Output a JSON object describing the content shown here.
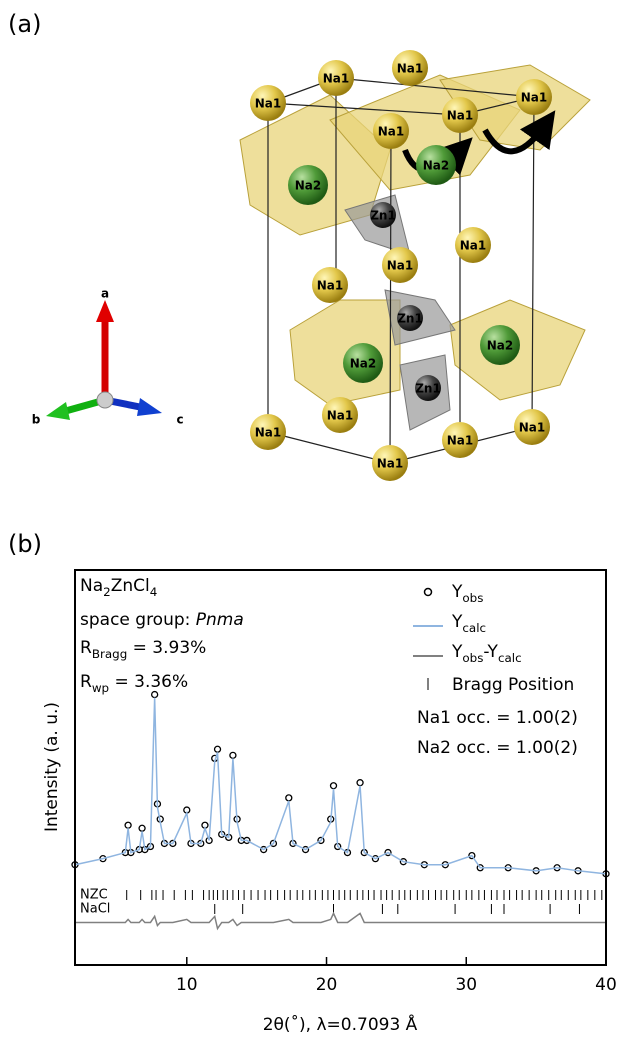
{
  "panel_labels": [
    "(a)",
    "(b)"
  ],
  "structure": {
    "atoms": [
      {
        "label": "Na1"
      },
      {
        "label": "Na1"
      },
      {
        "label": "Na1"
      },
      {
        "label": "Na1"
      },
      {
        "label": "Na1"
      },
      {
        "label": "Na1"
      },
      {
        "label": "Na1"
      },
      {
        "label": "Na1"
      },
      {
        "label": "Na1"
      },
      {
        "label": "Na1"
      },
      {
        "label": "Na1"
      },
      {
        "label": "Na1"
      },
      {
        "label": "Na1"
      },
      {
        "label": "Na1"
      },
      {
        "label": "Na2"
      },
      {
        "label": "Na2"
      },
      {
        "label": "Na2"
      },
      {
        "label": "Na2"
      },
      {
        "label": "Zn1"
      },
      {
        "label": "Zn1"
      },
      {
        "label": "Zn1"
      }
    ],
    "axes": [
      "a",
      "b",
      "c"
    ]
  },
  "chart_data": {
    "type": "scatter-line",
    "xlabel": "2θ(˚), λ=0.7093 Å",
    "ylabel": "Intensity (a. u.)",
    "xlim": [
      2,
      40
    ],
    "ylim": [
      -28,
      102
    ],
    "xticks": [
      10,
      20,
      30,
      40
    ],
    "annotations": [
      [
        {
          "text": "Na"
        },
        {
          "text": "2",
          "sub": true
        },
        {
          "text": "ZnCl"
        },
        {
          "text": "4",
          "sub": true
        }
      ],
      [
        {
          "text": "space group: "
        },
        {
          "text": "Pnma",
          "italic": true
        }
      ],
      [
        {
          "text": "R"
        },
        {
          "text": "Bragg",
          "sub": true
        },
        {
          "text": " = 3.93%"
        }
      ],
      [
        {
          "text": "R"
        },
        {
          "text": "wp",
          "sub": true
        },
        {
          "text": " = 3.36%"
        }
      ],
      [
        {
          "text": "Na1 occ. =  1.00(2)"
        }
      ],
      [
        {
          "text": "Na2 occ. =  1.00(2)"
        }
      ]
    ],
    "x": [
      2,
      4,
      5.6,
      5.8,
      6.0,
      6.6,
      6.8,
      7.0,
      7.4,
      7.7,
      7.9,
      8.1,
      8.4,
      9.0,
      10.0,
      10.3,
      11.0,
      11.3,
      11.6,
      12.0,
      12.2,
      12.5,
      13.0,
      13.3,
      13.6,
      13.9,
      14.3,
      15.5,
      16.2,
      17.3,
      17.6,
      18.5,
      19.6,
      20.3,
      20.5,
      20.8,
      21.5,
      22.4,
      22.7,
      23.5,
      24.4,
      25.5,
      27,
      28.5,
      30.4,
      31,
      33,
      35,
      36.5,
      38,
      40
    ],
    "series": [
      {
        "name": [
          {
            "text": "Y"
          },
          {
            "text": "obs",
            "sub": true
          }
        ],
        "color": "#000000",
        "style": "markers",
        "values": [
          5,
          7,
          9,
          18,
          9,
          10,
          17,
          10,
          11,
          61,
          25,
          20,
          12,
          12,
          23,
          12,
          12,
          18,
          13,
          40,
          43,
          15,
          14,
          41,
          20,
          13,
          13,
          10,
          12,
          27,
          12,
          10,
          13,
          20,
          31,
          11,
          9,
          32,
          9,
          7,
          9,
          6,
          5,
          5,
          8,
          4,
          4,
          3,
          4,
          3,
          2
        ]
      },
      {
        "name": [
          {
            "text": "Y"
          },
          {
            "text": "calc",
            "sub": true
          }
        ],
        "color": "#8fb5e0",
        "style": "line",
        "values": [
          5,
          7,
          9,
          17,
          9,
          10,
          16,
          10,
          11,
          60,
          24,
          19,
          12,
          12,
          22,
          12,
          12,
          17,
          13,
          39,
          42,
          15,
          14,
          40,
          19,
          13,
          13,
          10,
          12,
          26,
          12,
          10,
          13,
          19,
          30,
          11,
          9,
          31,
          9,
          7,
          9,
          6,
          5,
          5,
          8,
          4,
          4,
          3,
          4,
          3,
          2
        ]
      },
      {
        "name": [
          {
            "text": "Y"
          },
          {
            "text": "obs",
            "sub": true
          },
          {
            "text": "-Y"
          },
          {
            "text": "calc",
            "sub": true
          }
        ],
        "color": "#808080",
        "style": "line",
        "values": [
          -14,
          -14,
          -14,
          -13,
          -14,
          -14,
          -13,
          -14,
          -14,
          -12,
          -15,
          -14,
          -14,
          -14,
          -13,
          -14,
          -14,
          -14,
          -14,
          -12,
          -16,
          -14,
          -14,
          -13,
          -15,
          -14,
          -14,
          -14,
          -14,
          -13,
          -14,
          -14,
          -14,
          -13,
          -11,
          -14,
          -14,
          -11,
          -14,
          -14,
          -14,
          -14,
          -14,
          -14,
          -14,
          -14,
          -14,
          -14,
          -14,
          -14,
          -14
        ]
      }
    ],
    "bragg_legend": "Bragg Position",
    "bragg": [
      {
        "name": "NZC",
        "color": "#000000",
        "positions": [
          5.7,
          6.7,
          7.5,
          7.8,
          8.3,
          9.1,
          9.9,
          10.4,
          11.2,
          11.6,
          11.9,
          12.2,
          12.6,
          12.9,
          13.3,
          13.7,
          14.1,
          14.6,
          15.1,
          15.6,
          16.0,
          16.5,
          17.0,
          17.4,
          17.9,
          18.3,
          18.8,
          19.2,
          19.7,
          20.1,
          20.5,
          20.9,
          21.3,
          21.7,
          22.2,
          22.6,
          23.0,
          23.4,
          23.9,
          24.3,
          24.7,
          25.2,
          25.6,
          26.0,
          26.5,
          26.9,
          27.3,
          27.8,
          28.2,
          28.6,
          29.1,
          29.5,
          30.0,
          30.4,
          30.9,
          31.3,
          31.8,
          32.2,
          32.7,
          33.1,
          33.6,
          34.0,
          34.5,
          35.0,
          35.4,
          35.9,
          36.4,
          36.8,
          37.3,
          37.8,
          38.2,
          38.7,
          39.2,
          39.7
        ]
      },
      {
        "name": "NaCl",
        "color": "#000000",
        "positions": [
          12.0,
          14.0,
          20.5,
          24.0,
          25.1,
          29.2,
          31.8,
          32.7,
          36.0,
          38.1
        ]
      }
    ]
  }
}
